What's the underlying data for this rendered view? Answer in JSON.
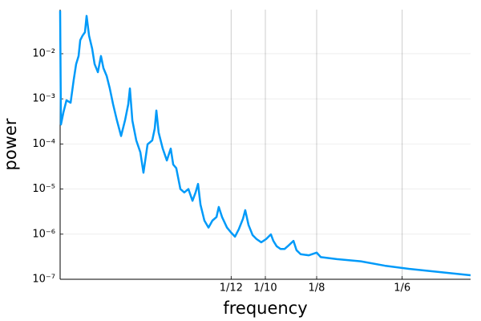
{
  "chart_data": {
    "type": "line",
    "x_label": "frequency",
    "y_label": "power",
    "x": [
      0,
      0.0004,
      0.0016,
      0.0031,
      0.0051,
      0.0066,
      0.0078,
      0.009,
      0.0098,
      0.0109,
      0.0121,
      0.0129,
      0.0141,
      0.0156,
      0.0168,
      0.0184,
      0.0199,
      0.0211,
      0.0227,
      0.0242,
      0.0258,
      0.0277,
      0.0297,
      0.0316,
      0.0332,
      0.034,
      0.0352,
      0.0371,
      0.0391,
      0.0406,
      0.0426,
      0.0449,
      0.0461,
      0.0469,
      0.048,
      0.05,
      0.052,
      0.0539,
      0.0551,
      0.0566,
      0.0586,
      0.0605,
      0.0625,
      0.0645,
      0.066,
      0.0672,
      0.0684,
      0.0703,
      0.0723,
      0.0742,
      0.0762,
      0.0773,
      0.0789,
      0.0813,
      0.0832,
      0.0852,
      0.0871,
      0.0891,
      0.0902,
      0.0918,
      0.0938,
      0.0957,
      0.098,
      0.1004,
      0.1027,
      0.1039,
      0.1055,
      0.1074,
      0.1094,
      0.1113,
      0.1137,
      0.1152,
      0.1172,
      0.1211,
      0.125,
      0.127,
      0.1348,
      0.1465,
      0.1582,
      0.1699,
      0.1816,
      0.2
    ],
    "values": [
      0.09,
      0.00027,
      0.0005,
      0.00093,
      0.00082,
      0.0026,
      0.0059,
      0.0089,
      0.02,
      0.025,
      0.03,
      0.069,
      0.025,
      0.013,
      0.0059,
      0.0039,
      0.0089,
      0.0048,
      0.0032,
      0.0017,
      0.00076,
      0.00033,
      0.00015,
      0.00033,
      0.00076,
      0.0017,
      0.00033,
      0.00012,
      6.5e-05,
      2.3e-05,
      9.8e-05,
      0.00012,
      0.00022,
      0.00055,
      0.00018,
      7.9e-05,
      4.3e-05,
      7.9e-05,
      3.5e-05,
      2.9e-05,
      1e-05,
      8.4e-06,
      1e-05,
      5.5e-06,
      8.4e-06,
      1.3e-05,
      4.5e-06,
      2e-06,
      1.4e-06,
      2e-06,
      2.4e-06,
      4e-06,
      2.4e-06,
      1.4e-06,
      1.1e-06,
      8.8e-07,
      1.3e-06,
      2.2e-06,
      3.4e-06,
      1.6e-06,
      9.5e-07,
      7.8e-07,
      6.6e-07,
      7.8e-07,
      9.9e-07,
      7.1e-07,
      5.4e-07,
      4.7e-07,
      4.7e-07,
      5.6e-07,
      7.1e-07,
      4.4e-07,
      3.6e-07,
      3.4e-07,
      3.9e-07,
      3.1e-07,
      2.8e-07,
      2.5e-07,
      2e-07,
      1.7e-07,
      1.5e-07,
      1.23e-07
    ],
    "color": "#009af9",
    "xlim": [
      0,
      0.2
    ],
    "ylim": [
      1e-07,
      0.095
    ],
    "log_y": true,
    "grid": true,
    "xticks": [
      {
        "value": 0.0833333,
        "label": "1/12"
      },
      {
        "value": 0.1,
        "label": "1/10"
      },
      {
        "value": 0.125,
        "label": "1/8"
      },
      {
        "value": 0.1666667,
        "label": "1/6"
      }
    ],
    "yticks": [
      {
        "value": 1e-07,
        "label": "10⁻⁷"
      },
      {
        "value": 1e-06,
        "label": "10⁻⁶"
      },
      {
        "value": 1e-05,
        "label": "10⁻⁵"
      },
      {
        "value": 0.0001,
        "label": "10⁻⁴"
      },
      {
        "value": 0.001,
        "label": "10⁻³"
      },
      {
        "value": 0.01,
        "label": "10⁻²"
      }
    ]
  }
}
